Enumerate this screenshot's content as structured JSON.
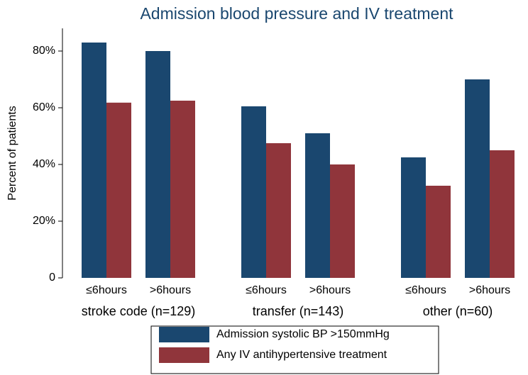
{
  "chart_data": {
    "type": "bar",
    "title": "Admission blood pressure and IV treatment",
    "y_label": "Percent of patients",
    "groups": [
      {
        "name": "stroke code (n=129)",
        "categories": [
          "≤6hours",
          ">6hours"
        ]
      },
      {
        "name": "transfer (n=143)",
        "categories": [
          "≤6hours",
          ">6hours"
        ]
      },
      {
        "name": "other (n=60)",
        "categories": [
          "≤6hours",
          ">6hours"
        ]
      }
    ],
    "series": [
      {
        "name": "Admission systolic BP >150mmHg",
        "color": "#1a476f",
        "values": [
          83,
          80,
          60.5,
          51,
          42.5,
          70
        ]
      },
      {
        "name": "Any IV antihypertensive treatment",
        "color": "#90353b",
        "values": [
          61.8,
          62.5,
          47.5,
          40,
          32.5,
          45
        ]
      }
    ],
    "ylim": [
      0,
      88
    ],
    "yticks": [
      0,
      {
        "value": 20,
        "label": "20%"
      },
      {
        "value": 40,
        "label": "40%"
      },
      {
        "value": 60,
        "label": "60%"
      },
      {
        "value": 80,
        "label": "80%"
      }
    ],
    "grid": false,
    "legend": "bottom"
  }
}
